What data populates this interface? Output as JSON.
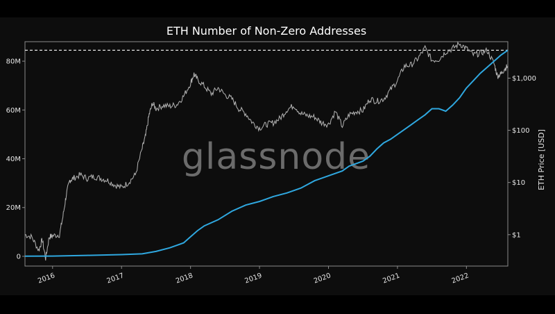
{
  "chart_data": {
    "type": "line",
    "title": "ETH Number of Non-Zero Addresses",
    "watermark": "glassnode",
    "xlabel": "",
    "ylabel_left": "",
    "ylabel_right": "ETH Price [USD]",
    "x_ticks": [
      "2016",
      "2017",
      "2018",
      "2019",
      "2020",
      "2021",
      "2022"
    ],
    "y_left_ticks": [
      {
        "value": 0,
        "label": "0"
      },
      {
        "value": 20000000,
        "label": "20M"
      },
      {
        "value": 40000000,
        "label": "40M"
      },
      {
        "value": 60000000,
        "label": "60M"
      },
      {
        "value": 80000000,
        "label": "80M"
      }
    ],
    "y_right_ticks": [
      {
        "value": 1,
        "label": "$1"
      },
      {
        "value": 10,
        "label": "$10"
      },
      {
        "value": 100,
        "label": "$100"
      },
      {
        "value": 1000,
        "label": "$1,000"
      }
    ],
    "x_range": [
      2015.6,
      2022.6
    ],
    "y_left_range": [
      -4000000,
      88000000
    ],
    "y_right_range": [
      0.25,
      5000
    ],
    "y_right_scale": "log",
    "reference_line": {
      "value": 84500000,
      "style": "dashed",
      "color": "#ffffff"
    },
    "grid": false,
    "series": [
      {
        "axis": "left",
        "color": "#2fa8e0",
        "points": [
          [
            2015.6,
            50000.0
          ],
          [
            2016.0,
            100000.0
          ],
          [
            2016.5,
            400000.0
          ],
          [
            2017.0,
            700000.0
          ],
          [
            2017.3,
            1000000.0
          ],
          [
            2017.5,
            2000000.0
          ],
          [
            2017.7,
            3500000.0
          ],
          [
            2017.9,
            5500000.0
          ],
          [
            2018.0,
            8000000.0
          ],
          [
            2018.1,
            10500000.0
          ],
          [
            2018.2,
            12500000.0
          ],
          [
            2018.4,
            15000000.0
          ],
          [
            2018.6,
            18500000.0
          ],
          [
            2018.8,
            21000000.0
          ],
          [
            2019.0,
            22500000.0
          ],
          [
            2019.2,
            24500000.0
          ],
          [
            2019.4,
            26000000.0
          ],
          [
            2019.6,
            28000000.0
          ],
          [
            2019.8,
            31000000.0
          ],
          [
            2020.0,
            33000000.0
          ],
          [
            2020.2,
            35000000.0
          ],
          [
            2020.3,
            37000000.0
          ],
          [
            2020.5,
            39000000.0
          ],
          [
            2020.6,
            41000000.0
          ],
          [
            2020.7,
            44000000.0
          ],
          [
            2020.8,
            46500000.0
          ],
          [
            2020.9,
            48000000.0
          ],
          [
            2021.0,
            50000000.0
          ],
          [
            2021.1,
            52000000.0
          ],
          [
            2021.2,
            54000000.0
          ],
          [
            2021.3,
            56000000.0
          ],
          [
            2021.4,
            58000000.0
          ],
          [
            2021.5,
            60500000.0
          ],
          [
            2021.6,
            60500000.0
          ],
          [
            2021.7,
            59500000.0
          ],
          [
            2021.8,
            62000000.0
          ],
          [
            2021.9,
            65000000.0
          ],
          [
            2022.0,
            69000000.0
          ],
          [
            2022.1,
            72000000.0
          ],
          [
            2022.2,
            75000000.0
          ],
          [
            2022.3,
            77500000.0
          ],
          [
            2022.4,
            80000000.0
          ],
          [
            2022.5,
            82500000.0
          ],
          [
            2022.6,
            84500000.0
          ]
        ]
      },
      {
        "axis": "right",
        "color": "#b4b4b4",
        "points": [
          [
            2015.6,
            1.0
          ],
          [
            2015.7,
            0.9
          ],
          [
            2015.8,
            0.5
          ],
          [
            2015.85,
            0.8
          ],
          [
            2015.9,
            0.35
          ],
          [
            2015.95,
            0.9
          ],
          [
            2016.0,
            0.95
          ],
          [
            2016.1,
            1.0
          ],
          [
            2016.15,
            2.2
          ],
          [
            2016.2,
            6.0
          ],
          [
            2016.25,
            11
          ],
          [
            2016.3,
            12
          ],
          [
            2016.4,
            14
          ],
          [
            2016.5,
            12
          ],
          [
            2016.6,
            13
          ],
          [
            2016.7,
            12
          ],
          [
            2016.8,
            11
          ],
          [
            2016.9,
            9
          ],
          [
            2017.0,
            8
          ],
          [
            2017.1,
            10
          ],
          [
            2017.2,
            14
          ],
          [
            2017.3,
            45
          ],
          [
            2017.35,
            80
          ],
          [
            2017.4,
            200
          ],
          [
            2017.45,
            330
          ],
          [
            2017.5,
            260
          ],
          [
            2017.6,
            300
          ],
          [
            2017.7,
            290
          ],
          [
            2017.8,
            310
          ],
          [
            2017.9,
            450
          ],
          [
            2018.0,
            800
          ],
          [
            2018.05,
            1200
          ],
          [
            2018.1,
            950
          ],
          [
            2018.2,
            700
          ],
          [
            2018.3,
            500
          ],
          [
            2018.4,
            650
          ],
          [
            2018.5,
            480
          ],
          [
            2018.6,
            400
          ],
          [
            2018.7,
            260
          ],
          [
            2018.8,
            210
          ],
          [
            2018.9,
            140
          ],
          [
            2019.0,
            110
          ],
          [
            2019.1,
            130
          ],
          [
            2019.2,
            140
          ],
          [
            2019.3,
            170
          ],
          [
            2019.4,
            250
          ],
          [
            2019.5,
            300
          ],
          [
            2019.6,
            210
          ],
          [
            2019.7,
            190
          ],
          [
            2019.8,
            180
          ],
          [
            2019.9,
            140
          ],
          [
            2020.0,
            130
          ],
          [
            2020.1,
            230
          ],
          [
            2020.2,
            120
          ],
          [
            2020.3,
            200
          ],
          [
            2020.4,
            230
          ],
          [
            2020.5,
            240
          ],
          [
            2020.6,
            400
          ],
          [
            2020.7,
            360
          ],
          [
            2020.8,
            400
          ],
          [
            2020.9,
            600
          ],
          [
            2021.0,
            900
          ],
          [
            2021.1,
            1700
          ],
          [
            2021.2,
            1800
          ],
          [
            2021.3,
            2400
          ],
          [
            2021.4,
            3800
          ],
          [
            2021.5,
            2200
          ],
          [
            2021.6,
            2300
          ],
          [
            2021.7,
            3200
          ],
          [
            2021.8,
            3700
          ],
          [
            2021.9,
            4600
          ],
          [
            2022.0,
            3700
          ],
          [
            2022.1,
            2800
          ],
          [
            2022.2,
            3000
          ],
          [
            2022.3,
            3400
          ],
          [
            2022.4,
            1900
          ],
          [
            2022.45,
            1100
          ],
          [
            2022.5,
            1200
          ],
          [
            2022.55,
            1500
          ],
          [
            2022.6,
            1700
          ]
        ]
      }
    ]
  }
}
